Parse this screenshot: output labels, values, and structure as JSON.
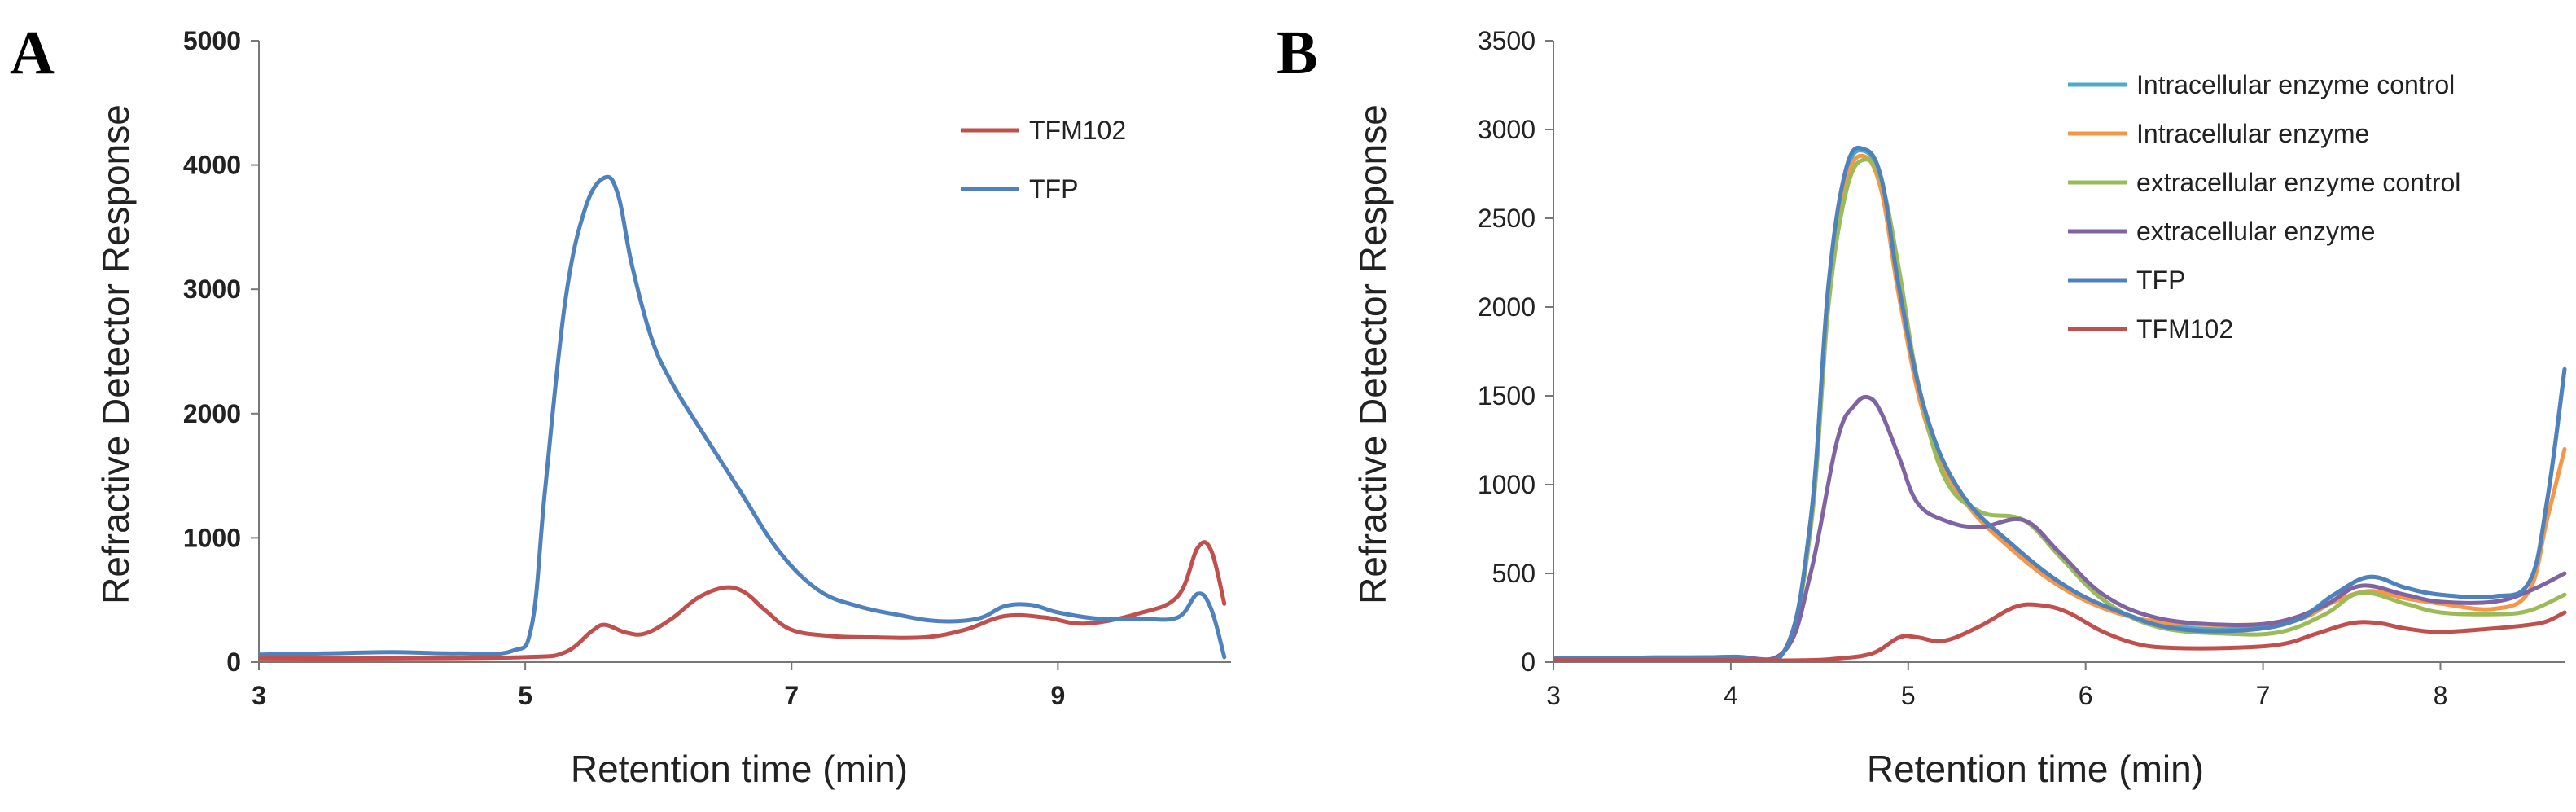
{
  "chart_data": [
    {
      "panel": "A",
      "type": "line",
      "xlabel": "Retention time (min)",
      "ylabel": "Refractive  Detector  Response",
      "xlim": [
        3,
        10.3
      ],
      "ylim": [
        0,
        5000
      ],
      "xticks": [
        3,
        5,
        7,
        9
      ],
      "yticks": [
        0,
        1000,
        2000,
        3000,
        4000,
        5000
      ],
      "legend_position": "top-right",
      "series": [
        {
          "name": "TFM102",
          "color": "#c0504d",
          "x": [
            3.0,
            4.0,
            5.0,
            5.3,
            5.5,
            5.6,
            5.75,
            5.9,
            6.1,
            6.3,
            6.5,
            6.65,
            6.8,
            7.0,
            7.3,
            7.6,
            8.0,
            8.3,
            8.6,
            8.9,
            9.2,
            9.6,
            9.9,
            10.05,
            10.15,
            10.25
          ],
          "y": [
            30,
            30,
            40,
            80,
            250,
            300,
            240,
            230,
            350,
            520,
            600,
            560,
            420,
            260,
            210,
            200,
            200,
            260,
            370,
            360,
            310,
            390,
            530,
            920,
            900,
            470
          ]
        },
        {
          "name": "TFP",
          "color": "#4f81bd",
          "x": [
            3.0,
            3.5,
            4.0,
            4.5,
            4.9,
            5.05,
            5.15,
            5.3,
            5.45,
            5.6,
            5.7,
            5.8,
            5.95,
            6.1,
            6.3,
            6.6,
            6.9,
            7.2,
            7.5,
            7.8,
            8.1,
            8.4,
            8.6,
            8.8,
            9.0,
            9.3,
            9.6,
            9.9,
            10.05,
            10.15,
            10.25
          ],
          "y": [
            60,
            70,
            80,
            70,
            90,
            300,
            1400,
            2900,
            3650,
            3900,
            3750,
            3200,
            2600,
            2250,
            1900,
            1400,
            900,
            580,
            450,
            380,
            330,
            350,
            450,
            460,
            400,
            350,
            350,
            360,
            550,
            430,
            40
          ]
        }
      ]
    },
    {
      "panel": "B",
      "type": "line",
      "xlabel": "Retention time (min)",
      "ylabel": "Refractive  Detector  Response",
      "xlim": [
        3,
        8.7
      ],
      "ylim": [
        0,
        3500
      ],
      "xticks": [
        3,
        4,
        5,
        6,
        7,
        8
      ],
      "yticks": [
        0,
        500,
        1000,
        1500,
        2000,
        2500,
        3000,
        3500
      ],
      "legend_position": "top-right",
      "series": [
        {
          "name": "Intracellular enzyme control",
          "color": "#4bacc6",
          "x": [
            3.0,
            3.5,
            4.0,
            4.3,
            4.45,
            4.55,
            4.65,
            4.75,
            4.85,
            4.95,
            5.1,
            5.3,
            5.6,
            5.9,
            6.2,
            6.5,
            6.9,
            7.2,
            7.4,
            7.6,
            7.8,
            8.0,
            8.3,
            8.5,
            8.6,
            8.7
          ],
          "y": [
            20,
            25,
            30,
            60,
            800,
            2100,
            2750,
            2880,
            2700,
            2100,
            1400,
            950,
            650,
            420,
            280,
            200,
            190,
            250,
            380,
            480,
            420,
            380,
            370,
            450,
            900,
            1650
          ]
        },
        {
          "name": "Intracellular enzyme",
          "color": "#f79646",
          "x": [
            3.0,
            3.5,
            4.0,
            4.3,
            4.45,
            4.55,
            4.65,
            4.75,
            4.85,
            4.95,
            5.1,
            5.3,
            5.6,
            5.9,
            6.2,
            6.5,
            6.9,
            7.2,
            7.4,
            7.6,
            7.8,
            8.0,
            8.3,
            8.5,
            8.6,
            8.7
          ],
          "y": [
            20,
            25,
            30,
            60,
            780,
            2050,
            2700,
            2850,
            2650,
            2050,
            1350,
            930,
            620,
            400,
            270,
            220,
            210,
            240,
            340,
            400,
            360,
            330,
            300,
            400,
            800,
            1200
          ]
        },
        {
          "name": "extracellular enzyme control",
          "color": "#9bbb59",
          "x": [
            3.0,
            3.5,
            4.0,
            4.3,
            4.45,
            4.55,
            4.65,
            4.75,
            4.85,
            4.95,
            5.05,
            5.2,
            5.4,
            5.65,
            5.85,
            6.1,
            6.4,
            6.8,
            7.1,
            7.35,
            7.55,
            7.8,
            8.0,
            8.3,
            8.5,
            8.7
          ],
          "y": [
            20,
            25,
            30,
            60,
            750,
            2000,
            2650,
            2830,
            2700,
            2200,
            1600,
            1050,
            850,
            800,
            600,
            350,
            200,
            160,
            170,
            270,
            390,
            330,
            280,
            270,
            290,
            380
          ]
        },
        {
          "name": "extracellular enzyme",
          "color": "#8064a2",
          "x": [
            3.0,
            3.5,
            4.0,
            4.3,
            4.45,
            4.6,
            4.7,
            4.78,
            4.85,
            4.95,
            5.05,
            5.2,
            5.4,
            5.65,
            5.85,
            6.1,
            6.4,
            6.8,
            7.1,
            7.35,
            7.55,
            7.8,
            8.0,
            8.3,
            8.5,
            8.7
          ],
          "y": [
            20,
            25,
            30,
            60,
            500,
            1250,
            1450,
            1490,
            1400,
            1150,
            900,
            800,
            760,
            800,
            620,
            380,
            250,
            210,
            230,
            320,
            430,
            380,
            340,
            340,
            400,
            500
          ]
        },
        {
          "name": "TFP",
          "color": "#4f81bd",
          "x": [
            3.0,
            3.5,
            4.0,
            4.3,
            4.45,
            4.55,
            4.65,
            4.75,
            4.85,
            4.95,
            5.1,
            5.3,
            5.6,
            5.9,
            6.2,
            6.5,
            6.9,
            7.2,
            7.4,
            7.6,
            7.8,
            8.0,
            8.3,
            8.5,
            8.6,
            8.7
          ],
          "y": [
            20,
            25,
            30,
            60,
            800,
            2120,
            2780,
            2890,
            2720,
            2100,
            1400,
            950,
            650,
            420,
            280,
            190,
            180,
            240,
            380,
            480,
            420,
            380,
            370,
            450,
            900,
            1650
          ]
        },
        {
          "name": "TFM102",
          "color": "#c0504d",
          "x": [
            3.0,
            4.0,
            4.4,
            4.6,
            4.8,
            4.95,
            5.05,
            5.2,
            5.4,
            5.6,
            5.75,
            5.9,
            6.1,
            6.3,
            6.5,
            6.8,
            7.1,
            7.3,
            7.5,
            7.65,
            7.8,
            8.0,
            8.3,
            8.5,
            8.6,
            8.7
          ],
          "y": [
            10,
            10,
            10,
            20,
            50,
            140,
            140,
            120,
            200,
            310,
            320,
            280,
            170,
            100,
            80,
            80,
            100,
            160,
            220,
            220,
            190,
            170,
            190,
            210,
            230,
            280
          ]
        }
      ]
    }
  ]
}
